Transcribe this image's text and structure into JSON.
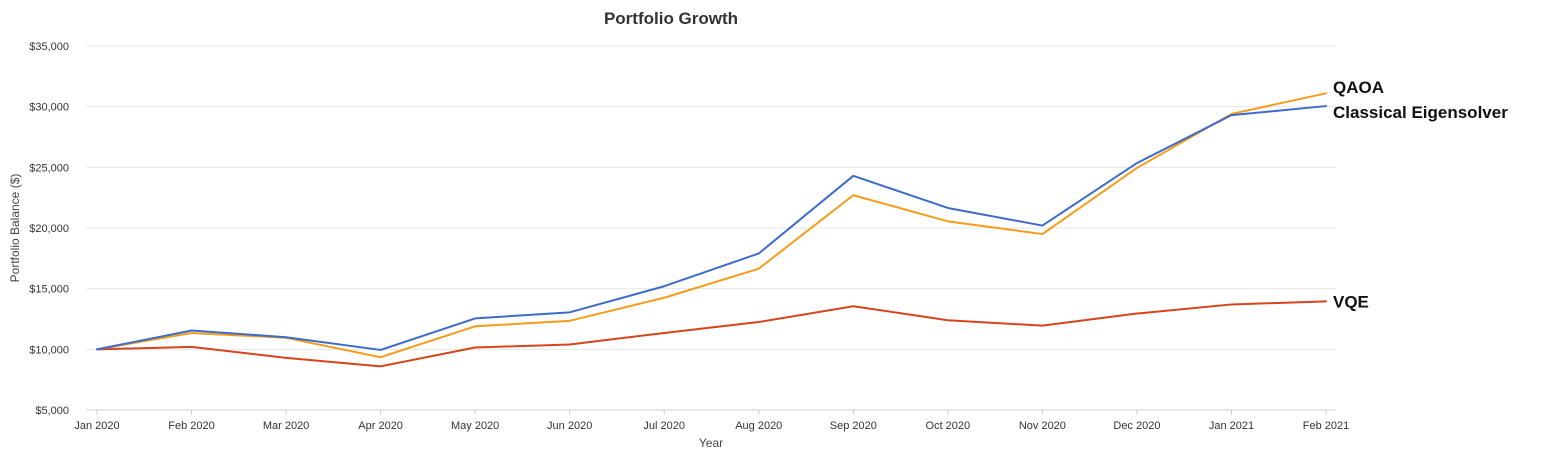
{
  "chart_data": {
    "type": "line",
    "title": "Portfolio Growth",
    "xlabel": "Year",
    "ylabel": "Portfolio Balance ($)",
    "ylim": [
      5000,
      35000
    ],
    "yticks": [
      5000,
      10000,
      15000,
      20000,
      25000,
      30000,
      35000
    ],
    "ytick_labels": [
      "$5,000",
      "$10,000",
      "$15,000",
      "$20,000",
      "$25,000",
      "$30,000",
      "$35,000"
    ],
    "categories": [
      "Jan 2020",
      "Feb 2020",
      "Mar 2020",
      "Apr 2020",
      "May 2020",
      "Jun 2020",
      "Jul 2020",
      "Aug 2020",
      "Sep 2020",
      "Oct 2020",
      "Nov 2020",
      "Dec 2020",
      "Jan 2021",
      "Feb 2021"
    ],
    "grid": true,
    "legend": "end-of-line labels",
    "series": [
      {
        "name": "QAOA",
        "color": "#f59c1a",
        "values": [
          10000,
          11350,
          10950,
          9350,
          11900,
          12350,
          14250,
          16650,
          22700,
          20550,
          19500,
          24950,
          29400,
          31100
        ]
      },
      {
        "name": "Classical Eigensolver",
        "color": "#3d6bcc",
        "values": [
          10000,
          11550,
          11000,
          9950,
          12550,
          13050,
          15200,
          17900,
          24300,
          21650,
          20200,
          25350,
          29300,
          30050
        ]
      },
      {
        "name": "VQE",
        "color": "#d5441c",
        "values": [
          10000,
          10200,
          9300,
          8600,
          10150,
          10400,
          11350,
          12250,
          13550,
          12400,
          11950,
          12950,
          13700,
          13950
        ]
      }
    ]
  }
}
